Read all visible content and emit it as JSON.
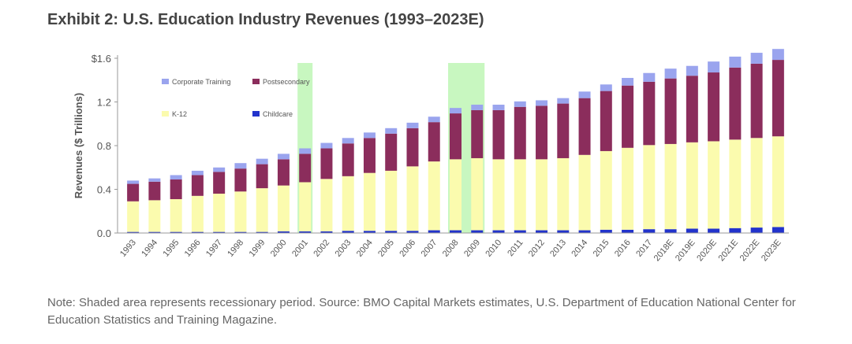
{
  "title": "Exhibit 2: U.S. Education Industry Revenues (1993–2023E)",
  "note": "Note: Shaded area represents recessionary period. Source: BMO Capital Markets estimates, U.S. Department of Education National Center for Education Statistics and Training Magazine.",
  "colors": {
    "corporate_training": "#9aa4ee",
    "postsecondary": "#8b2d5c",
    "k12": "#fbfbae",
    "childcare": "#2233cc",
    "recession_shading": "#c8f7c0",
    "axis": "#999999",
    "text": "#555555"
  },
  "chart_data": {
    "type": "bar",
    "stacked": true,
    "title": "Exhibit 2: U.S. Education Industry Revenues (1993–2023E)",
    "xlabel": "",
    "ylabel": "Revenues ($ Trillions)",
    "ylim": [
      0,
      1.6
    ],
    "yticks": [
      0.0,
      0.4,
      0.8,
      1.2,
      1.6
    ],
    "ytick_labels": [
      "0.0",
      "0.4",
      "0.8",
      "1.2",
      "$1.6"
    ],
    "grid": false,
    "legend": "top-left inside",
    "categories": [
      "1993",
      "1994",
      "1995",
      "1996",
      "1997",
      "1998",
      "1999",
      "2000",
      "2001",
      "2002",
      "2003",
      "2004",
      "2005",
      "2006",
      "2007",
      "2008",
      "2009",
      "2010",
      "2011",
      "2012",
      "2013",
      "2014",
      "2015",
      "2016",
      "2017",
      "2018E",
      "2019E",
      "2020E",
      "2021E",
      "2022E",
      "2023E"
    ],
    "recession_periods": [
      [
        "2001",
        "2001"
      ],
      [
        "2008",
        "2009"
      ]
    ],
    "series": [
      {
        "name": "Childcare",
        "color_key": "childcare",
        "values": [
          0.01,
          0.01,
          0.01,
          0.01,
          0.01,
          0.01,
          0.01,
          0.015,
          0.015,
          0.015,
          0.02,
          0.02,
          0.02,
          0.02,
          0.025,
          0.025,
          0.025,
          0.025,
          0.025,
          0.025,
          0.025,
          0.025,
          0.03,
          0.03,
          0.035,
          0.035,
          0.04,
          0.04,
          0.045,
          0.05,
          0.055
        ]
      },
      {
        "name": "K-12",
        "color_key": "k12",
        "values": [
          0.28,
          0.29,
          0.3,
          0.33,
          0.35,
          0.37,
          0.4,
          0.42,
          0.45,
          0.48,
          0.5,
          0.53,
          0.55,
          0.59,
          0.63,
          0.65,
          0.66,
          0.65,
          0.65,
          0.65,
          0.66,
          0.69,
          0.72,
          0.75,
          0.77,
          0.78,
          0.79,
          0.8,
          0.81,
          0.82,
          0.83
        ]
      },
      {
        "name": "Postsecondary",
        "color_key": "postsecondary",
        "values": [
          0.16,
          0.17,
          0.18,
          0.19,
          0.2,
          0.21,
          0.22,
          0.24,
          0.26,
          0.28,
          0.3,
          0.32,
          0.34,
          0.35,
          0.36,
          0.42,
          0.44,
          0.45,
          0.48,
          0.49,
          0.5,
          0.52,
          0.55,
          0.57,
          0.58,
          0.6,
          0.61,
          0.63,
          0.66,
          0.68,
          0.7
        ]
      },
      {
        "name": "Corporate Training",
        "color_key": "corporate_training",
        "values": [
          0.03,
          0.03,
          0.04,
          0.04,
          0.04,
          0.05,
          0.05,
          0.05,
          0.05,
          0.05,
          0.05,
          0.05,
          0.05,
          0.05,
          0.05,
          0.05,
          0.05,
          0.05,
          0.05,
          0.05,
          0.05,
          0.06,
          0.06,
          0.07,
          0.08,
          0.09,
          0.09,
          0.1,
          0.1,
          0.1,
          0.1
        ]
      }
    ]
  }
}
